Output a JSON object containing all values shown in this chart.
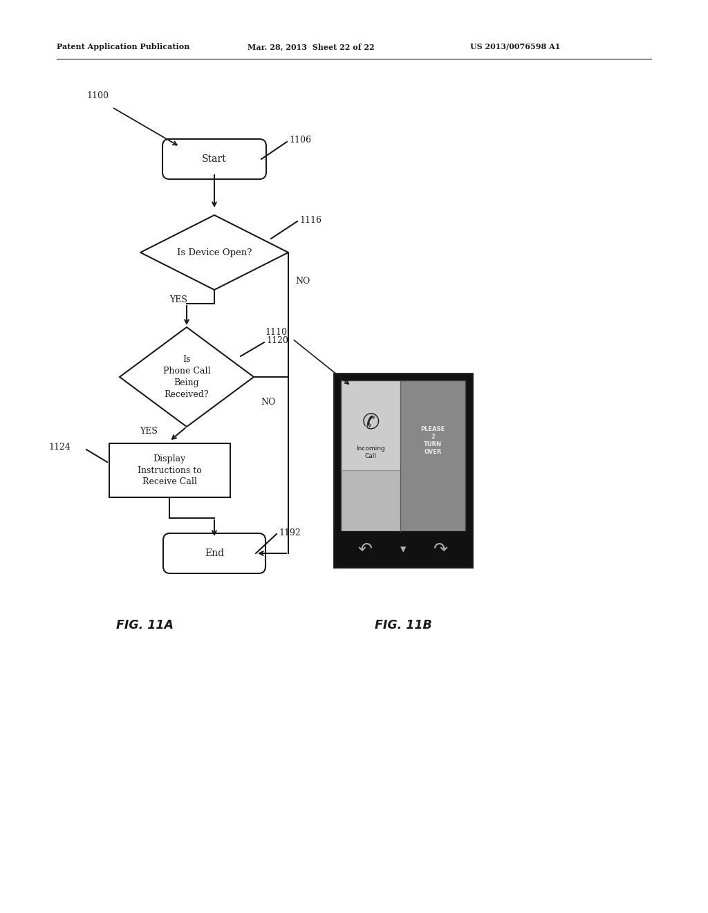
{
  "header_left": "Patent Application Publication",
  "header_mid": "Mar. 28, 2013  Sheet 22 of 22",
  "header_right": "US 2013/0076598 A1",
  "fig_label_left": "FIG. 11A",
  "fig_label_right": "FIG. 11B",
  "label_1100": "1100",
  "label_1106": "1106",
  "label_1110": "1110",
  "label_1116": "1116",
  "label_1120": "1120",
  "label_1124": "1124",
  "label_1192": "1192",
  "start_text": "Start",
  "end_text": "End",
  "diamond1_text": "Is Device Open?",
  "diamond2_text": "Is\nPhone Call\nBeing\nReceived?",
  "box_text": "Display\nInstructions to\nReceive Call",
  "yes1_text": "YES",
  "no1_text": "NO",
  "yes2_text": "YES",
  "no2_text": "NO",
  "bg_color": "#ffffff",
  "line_color": "#1a1a1a",
  "text_color": "#1a1a1a",
  "phone_left_gray": "#cccccc",
  "phone_right_gray": "#888888",
  "phone_black": "#111111",
  "phone_nav_gray": "#b0b0b0"
}
